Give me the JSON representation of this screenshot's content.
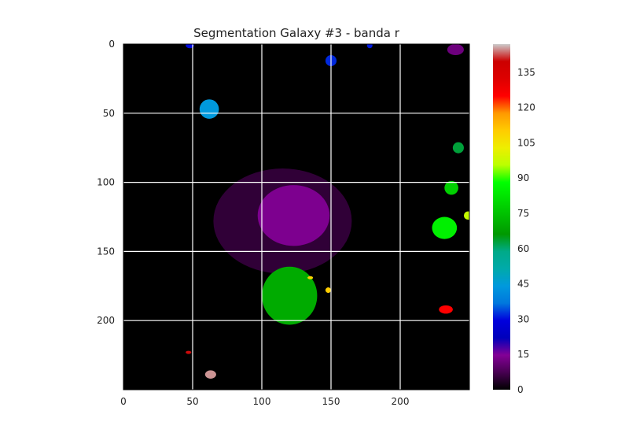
{
  "chart_data": {
    "type": "heatmap",
    "title": "Segmentation Galaxy #3 - banda r",
    "xlabel": "",
    "ylabel": "",
    "image_size": [
      250,
      250
    ],
    "xlim": [
      0,
      250
    ],
    "ylim": [
      250,
      0
    ],
    "x_ticks": [
      0,
      50,
      100,
      150,
      200
    ],
    "y_ticks": [
      0,
      50,
      100,
      150,
      200
    ],
    "grid": true,
    "grid_color": "#ffffff",
    "background_color": "#000000",
    "colormap": "nipy_spectral",
    "colorbar": {
      "range": [
        0,
        147
      ],
      "ticks": [
        0,
        15,
        30,
        45,
        60,
        75,
        90,
        105,
        120,
        135
      ]
    },
    "segments": [
      {
        "label": 14,
        "cx": 123,
        "cy": 124,
        "rx": 26,
        "ry": 22
      },
      {
        "label": 5,
        "cx": 115,
        "cy": 128,
        "rx": 50,
        "ry": 38
      },
      {
        "label": 12,
        "cx": 240,
        "cy": 4,
        "rx": 6,
        "ry": 4
      },
      {
        "label": 30,
        "cx": 48,
        "cy": 1,
        "rx": 3,
        "ry": 2
      },
      {
        "label": 32,
        "cx": 150,
        "cy": 12,
        "rx": 4,
        "ry": 4
      },
      {
        "label": 31,
        "cx": 178,
        "cy": 1,
        "rx": 2,
        "ry": 2
      },
      {
        "label": 44,
        "cx": 62,
        "cy": 47,
        "rx": 7,
        "ry": 7
      },
      {
        "label": 63,
        "cx": 242,
        "cy": 75,
        "rx": 4,
        "ry": 4
      },
      {
        "label": 78,
        "cx": 237,
        "cy": 104,
        "rx": 5,
        "ry": 5
      },
      {
        "label": 85,
        "cx": 232,
        "cy": 133,
        "rx": 9,
        "ry": 8
      },
      {
        "label": 97,
        "cx": 249,
        "cy": 124,
        "rx": 3,
        "ry": 3
      },
      {
        "label": 70,
        "cx": 120,
        "cy": 182,
        "rx": 20,
        "ry": 21
      },
      {
        "label": 110,
        "cx": 148,
        "cy": 178,
        "rx": 2,
        "ry": 2
      },
      {
        "label": 108,
        "cx": 135,
        "cy": 169,
        "rx": 2,
        "ry": 1
      },
      {
        "label": 125,
        "cx": 233,
        "cy": 192,
        "rx": 5,
        "ry": 3
      },
      {
        "label": 140,
        "cx": 47,
        "cy": 223,
        "rx": 2,
        "ry": 1
      },
      {
        "label": 145,
        "cx": 63,
        "cy": 239,
        "rx": 4,
        "ry": 3
      }
    ]
  }
}
